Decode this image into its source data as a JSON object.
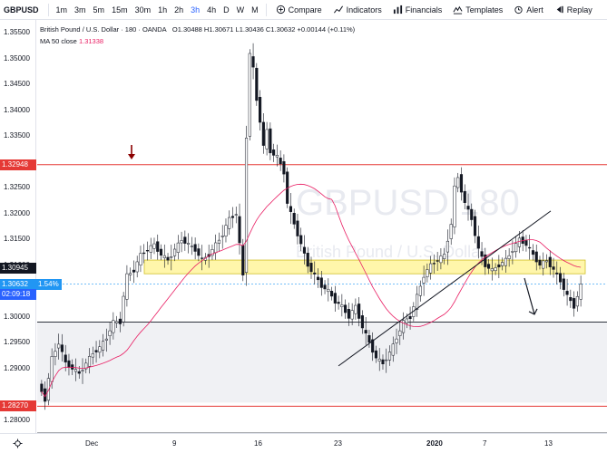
{
  "toolbar": {
    "symbol": "GBPUSD",
    "timeframes": [
      "1m",
      "3m",
      "5m",
      "15m",
      "30m",
      "1h",
      "2h",
      "3h",
      "4h",
      "D",
      "W",
      "M"
    ],
    "active_timeframe": "3h",
    "compare_label": "Compare",
    "indicators_label": "Indicators",
    "financials_label": "Financials",
    "templates_label": "Templates",
    "alert_label": "Alert",
    "replay_label": "Replay"
  },
  "legend": {
    "title": "British Pound / U.S. Dollar · 180 · OANDA",
    "ohlc": "O1.30488  H1.30671  L1.30436  C1.30632  +0.00144 (+0.11%)",
    "ma_label": "MA 50 close",
    "ma_value": "1.31338"
  },
  "watermark": {
    "symbol": "GBPUSD",
    "interval": "180",
    "description": "British Pound / U.S. Dollar"
  },
  "price_axis": {
    "ticks": [
      "1.35500",
      "1.35000",
      "1.34500",
      "1.34000",
      "1.33500",
      "1.32500",
      "1.32000",
      "1.31500",
      "1.31000",
      "1.30000",
      "1.29500",
      "1.29000",
      "1.28000"
    ],
    "labels": {
      "resistance": "1.32948",
      "zone": "1.30945",
      "last": "1.30632",
      "last_change": "1.54%",
      "countdown": "02:09:18",
      "support": "1.28270"
    }
  },
  "time_axis": {
    "ticks": [
      "Dec",
      "9",
      "16",
      "23",
      "2020",
      "7",
      "13"
    ]
  },
  "colors": {
    "up": "#26a69a",
    "down": "#ef5350",
    "candle": "#131722",
    "resistance": "#e53935",
    "zone_fill": "#fff59d",
    "zone_border": "#c9b400",
    "ma": "#e91e63",
    "last_price": "#2196f3",
    "arrow_down": "#8b0000"
  },
  "chart_data": {
    "type": "candlestick",
    "symbol": "GBPUSD",
    "interval": "180",
    "exchange": "OANDA",
    "ylim": [
      1.2775,
      1.3575
    ],
    "x_labels": [
      "Dec",
      "9",
      "16",
      "23",
      "2020",
      "7",
      "13"
    ],
    "horizontal_levels": [
      1.32948,
      1.2827,
      1.299,
      1.2775
    ],
    "zone": [
      1.30945,
      1.311
    ],
    "last_price": 1.30632,
    "ma50_value": 1.31338,
    "path": [
      [
        0,
        1.287
      ],
      [
        4,
        1.284
      ],
      [
        8,
        1.292
      ],
      [
        12,
        1.295
      ],
      [
        16,
        1.291
      ],
      [
        20,
        1.29
      ],
      [
        24,
        1.289
      ],
      [
        28,
        1.291
      ],
      [
        32,
        1.293
      ],
      [
        36,
        1.294
      ],
      [
        40,
        1.296
      ],
      [
        44,
        1.299
      ],
      [
        48,
        1.299
      ],
      [
        50,
        1.304
      ],
      [
        52,
        1.308
      ],
      [
        56,
        1.309
      ],
      [
        60,
        1.312
      ],
      [
        64,
        1.313
      ],
      [
        68,
        1.314
      ],
      [
        72,
        1.312
      ],
      [
        76,
        1.311
      ],
      [
        80,
        1.313
      ],
      [
        84,
        1.315
      ],
      [
        88,
        1.314
      ],
      [
        92,
        1.313
      ],
      [
        96,
        1.311
      ],
      [
        100,
        1.312
      ],
      [
        104,
        1.314
      ],
      [
        108,
        1.316
      ],
      [
        112,
        1.319
      ],
      [
        116,
        1.32
      ],
      [
        118,
        1.314
      ],
      [
        120,
        1.308
      ],
      [
        121,
        1.335
      ],
      [
        122,
        1.351
      ],
      [
        124,
        1.348
      ],
      [
        126,
        1.342
      ],
      [
        128,
        1.338
      ],
      [
        130,
        1.333
      ],
      [
        132,
        1.336
      ],
      [
        134,
        1.332
      ],
      [
        138,
        1.331
      ],
      [
        142,
        1.328
      ],
      [
        144,
        1.322
      ],
      [
        148,
        1.318
      ],
      [
        152,
        1.314
      ],
      [
        156,
        1.31
      ],
      [
        160,
        1.308
      ],
      [
        164,
        1.306
      ],
      [
        168,
        1.305
      ],
      [
        172,
        1.303
      ],
      [
        176,
        1.302
      ],
      [
        180,
        1.3
      ],
      [
        184,
        1.302
      ],
      [
        188,
        1.298
      ],
      [
        192,
        1.295
      ],
      [
        196,
        1.292
      ],
      [
        200,
        1.291
      ],
      [
        204,
        1.293
      ],
      [
        208,
        1.296
      ],
      [
        212,
        1.299
      ],
      [
        216,
        1.3
      ],
      [
        220,
        1.304
      ],
      [
        224,
        1.308
      ],
      [
        228,
        1.31
      ],
      [
        232,
        1.311
      ],
      [
        236,
        1.312
      ],
      [
        240,
        1.318
      ],
      [
        242,
        1.325
      ],
      [
        244,
        1.327
      ],
      [
        248,
        1.322
      ],
      [
        252,
        1.319
      ],
      [
        256,
        1.313
      ],
      [
        260,
        1.31
      ],
      [
        264,
        1.309
      ],
      [
        268,
        1.31
      ],
      [
        272,
        1.311
      ],
      [
        276,
        1.313
      ],
      [
        280,
        1.315
      ],
      [
        284,
        1.314
      ],
      [
        288,
        1.312
      ],
      [
        292,
        1.31
      ],
      [
        296,
        1.311
      ],
      [
        300,
        1.309
      ],
      [
        304,
        1.307
      ],
      [
        308,
        1.304
      ],
      [
        312,
        1.302
      ],
      [
        316,
        1.306
      ]
    ]
  }
}
